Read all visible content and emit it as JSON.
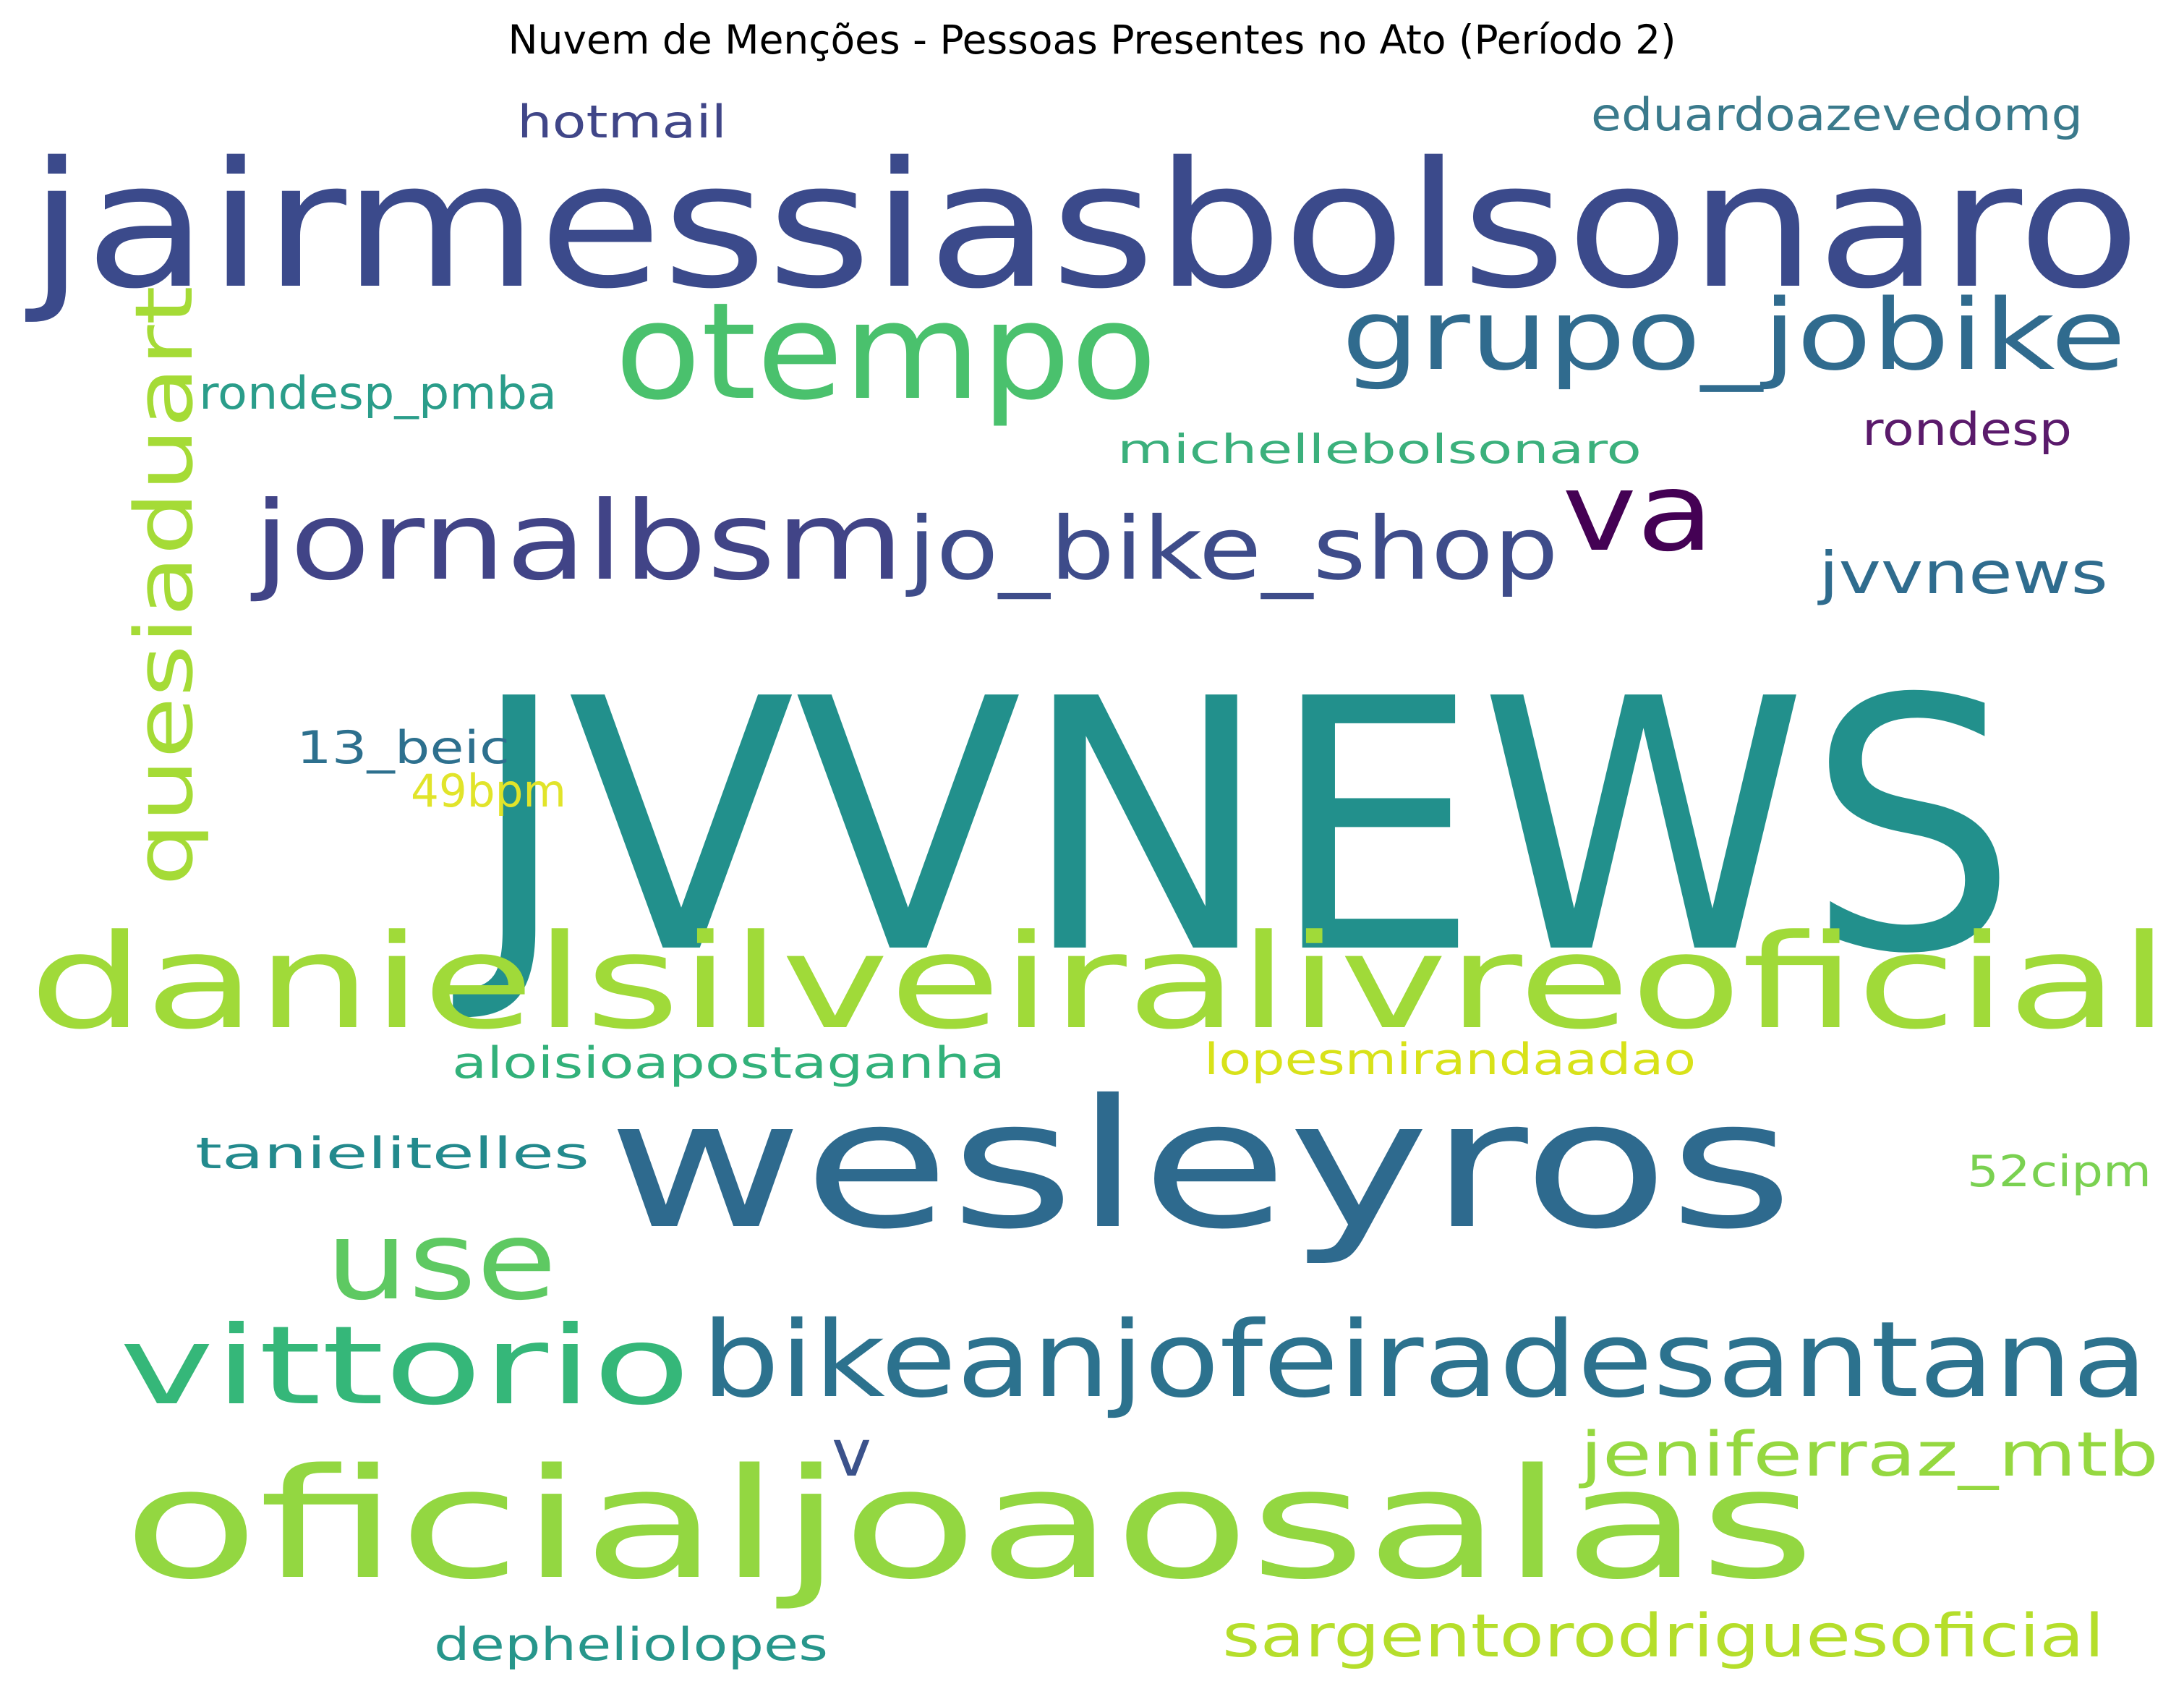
{
  "title": "Nuvem de Menções - Pessoas Presentes no Ato (Período 2)",
  "words": [
    {
      "text": "JVVNEWS",
      "color": "#22908c"
    },
    {
      "text": "jairmessiasbolsonaro",
      "color": "#3b4a8b"
    },
    {
      "text": "wesleyros",
      "color": "#2e6a8e"
    },
    {
      "text": "danielsilveiralivreoficial",
      "color": "#a0da39"
    },
    {
      "text": "oficialjoaosalas",
      "color": "#93d741"
    },
    {
      "text": "otempo",
      "color": "#4ac16d"
    },
    {
      "text": "bikeanjofeiradesantana",
      "color": "#2c728e"
    },
    {
      "text": "grupo_jobike",
      "color": "#306b8e"
    },
    {
      "text": "jornalbsm",
      "color": "#414487"
    },
    {
      "text": "jo_bike_shop",
      "color": "#3e4c8a"
    },
    {
      "text": "va",
      "color": "#440154"
    },
    {
      "text": "vittorio",
      "color": "#35b779"
    },
    {
      "text": "use",
      "color": "#5ec962"
    },
    {
      "text": "quesiaduart",
      "color": "#a5db36"
    },
    {
      "text": "jeniferraz_mtb",
      "color": "#95d840"
    },
    {
      "text": "sargentorodriguesoficial",
      "color": "#b5de2b"
    },
    {
      "text": "jvvnews",
      "color": "#2f6c8e"
    },
    {
      "text": "eduardoazevedomg",
      "color": "#3a7a8c"
    },
    {
      "text": "hotmail",
      "color": "#404688"
    },
    {
      "text": "rondesp_pmba",
      "color": "#2a9d8a"
    },
    {
      "text": "michellebolsonaro",
      "color": "#3bb07c"
    },
    {
      "text": "rondesp",
      "color": "#5a1a6b"
    },
    {
      "text": "13_beic",
      "color": "#2d708e"
    },
    {
      "text": "49bpm",
      "color": "#e1e42a"
    },
    {
      "text": "aloisioapostaganha",
      "color": "#32b17a"
    },
    {
      "text": "lopesmirandaadao",
      "color": "#d8e219"
    },
    {
      "text": "tanielitelles",
      "color": "#238a8d"
    },
    {
      "text": "52cipm",
      "color": "#7ad151"
    },
    {
      "text": "v",
      "color": "#3b528b"
    },
    {
      "text": "depheliolopes",
      "color": "#27968b"
    }
  ]
}
